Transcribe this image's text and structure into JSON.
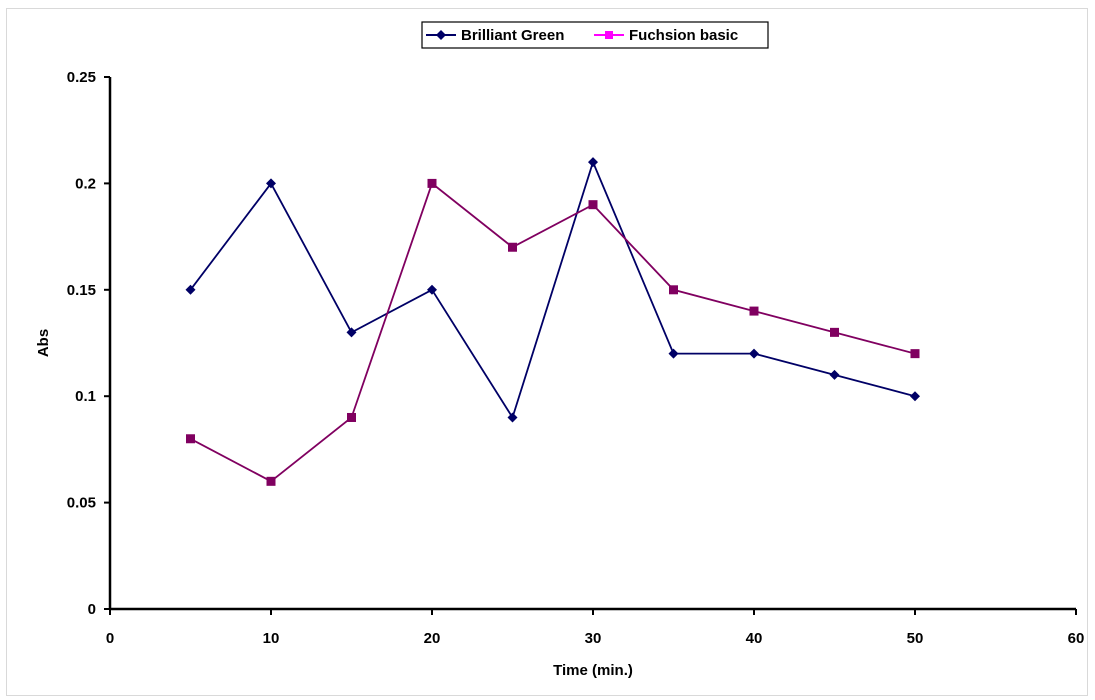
{
  "chart_data": {
    "type": "line",
    "xlabel": "Time (min.)",
    "ylabel": "Abs",
    "xlim": [
      0,
      60
    ],
    "ylim": [
      0,
      0.25
    ],
    "x_ticks": [
      "0",
      "10",
      "20",
      "30",
      "40",
      "50",
      "60"
    ],
    "y_ticks": [
      "0",
      "0.05",
      "0.1",
      "0.15",
      "0.2",
      "0.25"
    ],
    "grid": false,
    "legend_position": "top-center",
    "series": [
      {
        "name": "Brilliant Green",
        "color": "#000066",
        "marker": "diamond",
        "x": [
          5,
          10,
          15,
          20,
          25,
          30,
          35,
          40,
          45,
          50
        ],
        "y": [
          0.15,
          0.2,
          0.13,
          0.15,
          0.09,
          0.21,
          0.12,
          0.12,
          0.11,
          0.1
        ]
      },
      {
        "name": "Fuchsion basic",
        "color": "#800060",
        "legend_color": "#ff00ff",
        "marker": "square",
        "x": [
          5,
          10,
          15,
          20,
          25,
          30,
          35,
          40,
          45,
          50
        ],
        "y": [
          0.08,
          0.06,
          0.09,
          0.2,
          0.17,
          0.19,
          0.15,
          0.14,
          0.13,
          0.12
        ]
      }
    ]
  }
}
